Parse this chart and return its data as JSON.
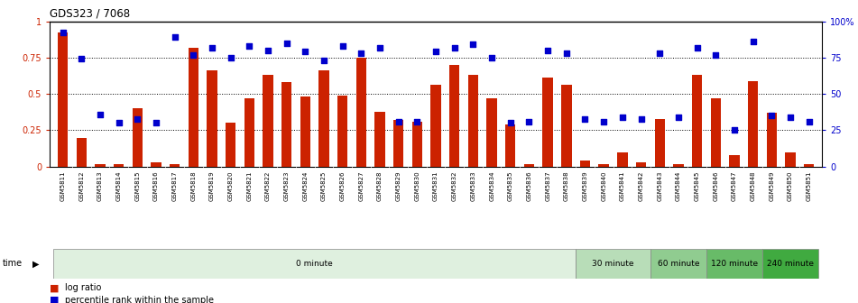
{
  "title": "GDS323 / 7068",
  "samples": [
    "GSM5811",
    "GSM5812",
    "GSM5813",
    "GSM5814",
    "GSM5815",
    "GSM5816",
    "GSM5817",
    "GSM5818",
    "GSM5819",
    "GSM5820",
    "GSM5821",
    "GSM5822",
    "GSM5823",
    "GSM5824",
    "GSM5825",
    "GSM5826",
    "GSM5827",
    "GSM5828",
    "GSM5829",
    "GSM5830",
    "GSM5831",
    "GSM5832",
    "GSM5833",
    "GSM5834",
    "GSM5835",
    "GSM5836",
    "GSM5837",
    "GSM5838",
    "GSM5839",
    "GSM5840",
    "GSM5841",
    "GSM5842",
    "GSM5843",
    "GSM5844",
    "GSM5845",
    "GSM5846",
    "GSM5847",
    "GSM5848",
    "GSM5849",
    "GSM5850",
    "GSM5851"
  ],
  "log_ratio": [
    0.92,
    0.2,
    0.02,
    0.02,
    0.4,
    0.03,
    0.02,
    0.82,
    0.66,
    0.3,
    0.47,
    0.63,
    0.58,
    0.48,
    0.66,
    0.49,
    0.75,
    0.38,
    0.32,
    0.31,
    0.56,
    0.7,
    0.63,
    0.47,
    0.29,
    0.02,
    0.61,
    0.56,
    0.04,
    0.02,
    0.1,
    0.03,
    0.33,
    0.02,
    0.63,
    0.47,
    0.08,
    0.59,
    0.37,
    0.1,
    0.02
  ],
  "percentile_rank": [
    0.92,
    0.74,
    0.36,
    0.3,
    0.33,
    0.3,
    0.89,
    0.77,
    0.82,
    0.75,
    0.83,
    0.8,
    0.85,
    0.79,
    0.73,
    0.83,
    0.78,
    0.82,
    0.31,
    0.31,
    0.79,
    0.82,
    0.84,
    0.75,
    0.3,
    0.31,
    0.8,
    0.78,
    0.33,
    0.31,
    0.34,
    0.33,
    0.78,
    0.34,
    0.82,
    0.77,
    0.25,
    0.86,
    0.35,
    0.34,
    0.31
  ],
  "time_groups": [
    {
      "label": "0 minute",
      "start": 0,
      "end": 28,
      "color": "#dff0df"
    },
    {
      "label": "30 minute",
      "start": 28,
      "end": 32,
      "color": "#b8ddb8"
    },
    {
      "label": "60 minute",
      "start": 32,
      "end": 35,
      "color": "#90cc90"
    },
    {
      "label": "120 minute",
      "start": 35,
      "end": 38,
      "color": "#68bb68"
    },
    {
      "label": "240 minute",
      "start": 38,
      "end": 41,
      "color": "#40aa40"
    }
  ],
  "bar_color": "#cc2200",
  "dot_color": "#0000cc",
  "left_axis_color": "#cc2200",
  "right_axis_color": "#0000cc",
  "ylim_left": [
    0,
    1.0
  ],
  "ylim_right": [
    0,
    100
  ],
  "yticks_left": [
    0,
    0.25,
    0.5,
    0.75,
    1.0
  ],
  "ytick_labels_left": [
    "0",
    "0.25",
    "0.5",
    "0.75",
    "1"
  ],
  "yticks_right": [
    0,
    25,
    50,
    75,
    100
  ],
  "ytick_labels_right": [
    "0",
    "25",
    "50",
    "75",
    "100%"
  ],
  "legend_log_ratio": "log ratio",
  "legend_percentile": "percentile rank within the sample",
  "time_label": "time",
  "xticklabel_bg": "#d8d8d8",
  "grid_color": "#000000",
  "top_border_color": "#000000"
}
